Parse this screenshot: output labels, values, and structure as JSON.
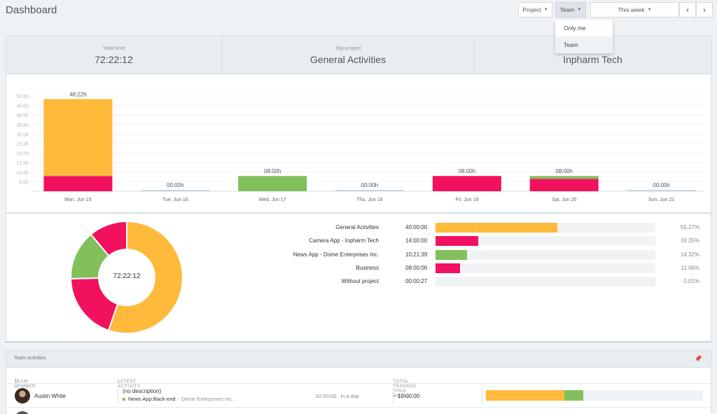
{
  "header": {
    "title": "Dashboard"
  },
  "toolbar": {
    "project_label": "Project",
    "team_label": "Team",
    "week_label": "This week",
    "prev_icon": "‹",
    "next_icon": "›"
  },
  "team_dropdown": {
    "options": [
      "Only me",
      "Team"
    ],
    "selected": "Team"
  },
  "summary": {
    "total_time_label": "Total time",
    "total_time_value": "72:22:12",
    "top_project_label": "Top project",
    "top_project_value": "General Activities",
    "top_client_value": "Inpharm Tech"
  },
  "colors": {
    "orange": "#ffba3b",
    "pink": "#f2115e",
    "green": "#81c05a",
    "grey": "#ccd5dc"
  },
  "chart_data": {
    "type": "bar",
    "stacked": true,
    "categories": [
      "Mon, Jun 15",
      "Tue, Jun 16",
      "Wed, Jun 17",
      "Thu, Jun 18",
      "Fri, Jun 19",
      "Sat, Jun 20",
      "Sun, Jun 21"
    ],
    "totals": [
      "48:22h",
      "00:00h",
      "08:00h",
      "00:00h",
      "08:00h",
      "08:00h",
      "00:00h"
    ],
    "series": [
      {
        "color": "#f2115e",
        "values": [
          8,
          0,
          0,
          0,
          8,
          6.5,
          0
        ]
      },
      {
        "color": "#81c05a",
        "values": [
          0,
          0,
          8,
          0,
          0,
          1.5,
          0
        ]
      },
      {
        "color": "#ffba3b",
        "values": [
          40.4,
          0,
          0,
          0,
          0,
          0,
          0
        ]
      }
    ],
    "y_ticks": [
      "5.0h",
      "10.0h",
      "15.0h",
      "20.0h",
      "25.0h",
      "30.0h",
      "35.0h",
      "40.0h",
      "45.0h",
      "50.0h"
    ],
    "ylim": [
      0,
      50
    ],
    "grid": true
  },
  "breakdown": {
    "total": "72:22:12",
    "items": [
      {
        "name": "General Activities",
        "time": "40:00:00",
        "pct": "55.27%",
        "fraction": 0.5527,
        "color": "#ffba3b"
      },
      {
        "name": "Camera App - Inpharm Tech",
        "time": "14:00:00",
        "pct": "19.35%",
        "fraction": 0.1935,
        "color": "#f2115e"
      },
      {
        "name": "News App - Dome Enterprises Inc.",
        "time": "10:21:39",
        "pct": "14.32%",
        "fraction": 0.1432,
        "color": "#81c05a"
      },
      {
        "name": "Business",
        "time": "08:00:06",
        "pct": "11.06%",
        "fraction": 0.1106,
        "color": "#f2115e"
      },
      {
        "name": "Without project",
        "time": "00:00:27",
        "pct": "0.01%",
        "fraction": 0.0001,
        "color": "#ccd5dc"
      }
    ]
  },
  "team": {
    "title": "Team activities",
    "col_member": "TEAM MEMBER",
    "col_latest": "LATEST ACTIVITY",
    "col_tracked": "TOTAL TRACKED (THIS WEEK)",
    "sort_icon": "⇕",
    "sort_active_icon": "↓",
    "rows": [
      {
        "member": "Austin White",
        "description": "(no description)",
        "project": "News App:Back-end",
        "client": "- Dome Enterprises Inc.",
        "duration": "02:00:00",
        "when": "in a day",
        "tracked": "10:00:00",
        "week_split": [
          0.36,
          0.09
        ]
      }
    ]
  }
}
